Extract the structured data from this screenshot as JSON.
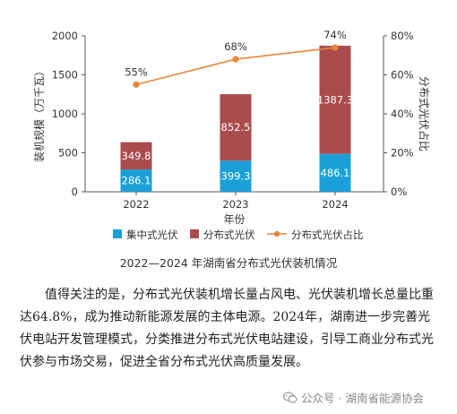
{
  "chart_data": {
    "type": "bar+line",
    "categories": [
      "2022",
      "2023",
      "2024"
    ],
    "series": [
      {
        "name": "集中式光伏",
        "type": "stacked-bar",
        "values": [
          286.1,
          399.3,
          486.1
        ],
        "color": "#1aa0d6",
        "labels": [
          "286.1",
          "399.3",
          "486.1"
        ]
      },
      {
        "name": "分布式光伏",
        "type": "stacked-bar",
        "values": [
          349.8,
          852.5,
          1387.3
        ],
        "color": "#aa4b4e",
        "labels": [
          "349.8",
          "852.5",
          "1387.3"
        ]
      },
      {
        "name": "分布式光伏占比",
        "type": "line",
        "axis": "right",
        "values": [
          55,
          68,
          74
        ],
        "color": "#e8873a",
        "labels": [
          "55%",
          "68%",
          "74%"
        ]
      }
    ],
    "xlabel": "年份",
    "ylabel": "装机规模（万千瓦）",
    "ylabel_right": "分布式光伏占比",
    "ylim": [
      0,
      2000
    ],
    "yticks": [
      "0",
      "500",
      "1000",
      "1500",
      "2000"
    ],
    "ylim_right": [
      0,
      80
    ],
    "yticks_right": [
      "0%",
      "20%",
      "40%",
      "60%",
      "80%"
    ],
    "legend_position": "bottom",
    "title": "2022—2024 年湖南省分布式光伏装机情况"
  },
  "article": {
    "paragraph": "值得关注的是，分布式光伏装机增长量占风电、光伏装机增长总量比重达64.8%，成为推动新能源发展的主体电源。2024年，湖南进一步完善光伏电站开发管理模式，分类推进分布式光伏电站建设，引导工商业分布式光伏参与市场交易，促进全省分布式光伏高质量发展。"
  },
  "watermark": {
    "prefix": "公众号 ·",
    "account": "湖南省能源协会",
    "icon": "wechat-icon"
  }
}
